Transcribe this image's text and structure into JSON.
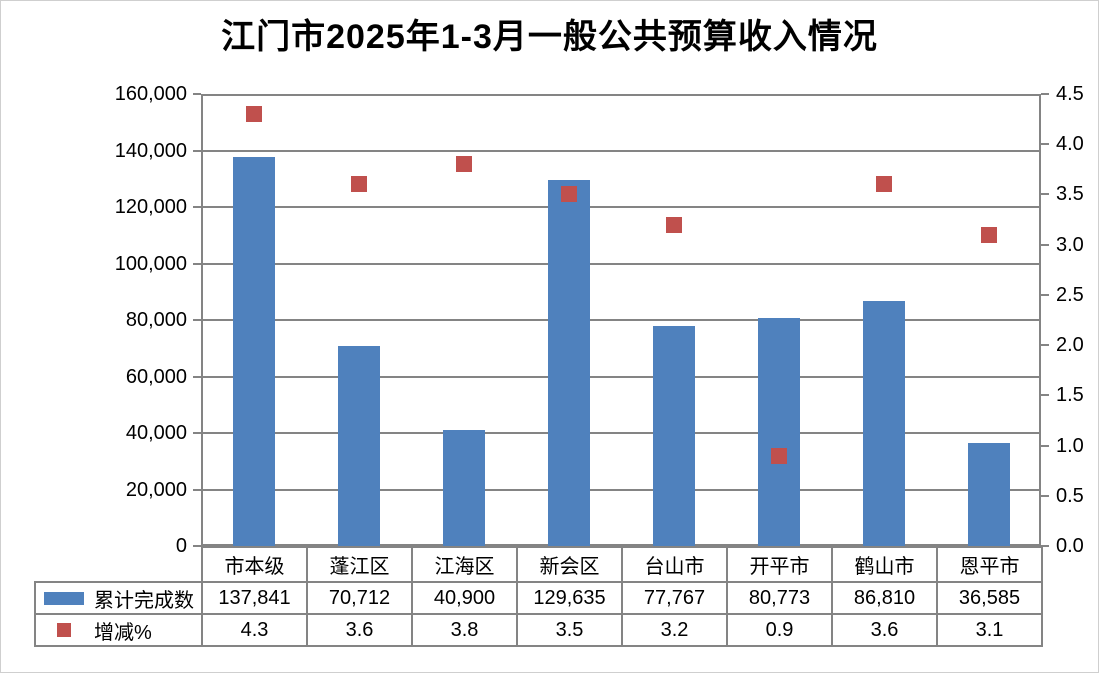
{
  "title": "江门市2025年1-3月一般公共预算收入情况",
  "chart_data": {
    "type": "combo",
    "title": "江门市2025年1-3月一般公共预算收入情况",
    "categories": [
      "市本级",
      "蓬江区",
      "江海区",
      "新会区",
      "台山市",
      "开平市",
      "鹤山市",
      "恩平市"
    ],
    "series": [
      {
        "name": "累计完成数",
        "type": "bar",
        "axis": "left",
        "color": "#4F81BD",
        "values": [
          137841,
          70712,
          40900,
          129635,
          77767,
          80773,
          86810,
          36585
        ]
      },
      {
        "name": "增减%",
        "type": "scatter",
        "marker": "square",
        "axis": "right",
        "color": "#C0504D",
        "values": [
          4.3,
          3.6,
          3.8,
          3.5,
          3.2,
          0.9,
          3.6,
          3.1
        ]
      }
    ],
    "left_axis": {
      "min": 0,
      "max": 160000,
      "step": 20000,
      "tick_labels": [
        "0",
        "20,000",
        "40,000",
        "60,000",
        "80,000",
        "100,000",
        "120,000",
        "140,000",
        "160,000"
      ]
    },
    "right_axis": {
      "min": 0,
      "max": 4.5,
      "step": 0.5,
      "tick_labels": [
        "0.0",
        "0.5",
        "1.0",
        "1.5",
        "2.0",
        "2.5",
        "3.0",
        "3.5",
        "4.0",
        "4.5"
      ]
    },
    "grid": true,
    "grid_color": "#848484",
    "legend_position": "table-left"
  },
  "table": {
    "header_row": [
      "市本级",
      "蓬江区",
      "江海区",
      "新会区",
      "台山市",
      "开平市",
      "鹤山市",
      "恩平市"
    ],
    "rows": [
      {
        "label": "累计完成数",
        "legend_color": "#4F81BD",
        "legend_shape": "bar",
        "values": [
          "137,841",
          "70,712",
          "40,900",
          "129,635",
          "77,767",
          "80,773",
          "86,810",
          "36,585"
        ]
      },
      {
        "label": "增减%",
        "legend_color": "#C0504D",
        "legend_shape": "square",
        "values": [
          "4.3",
          "3.6",
          "3.8",
          "3.5",
          "3.2",
          "0.9",
          "3.6",
          "3.1"
        ]
      }
    ]
  }
}
